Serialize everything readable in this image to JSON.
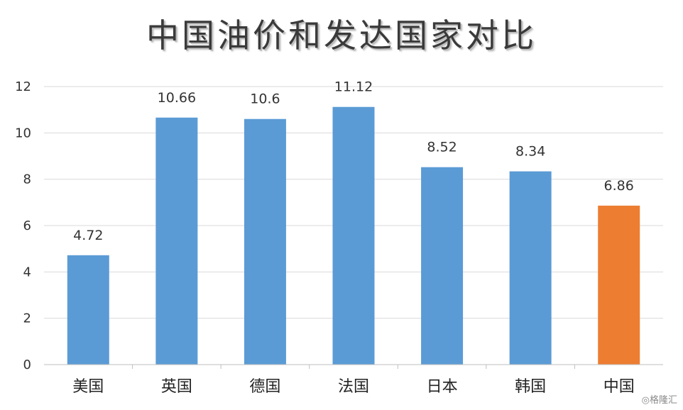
{
  "chart_data": {
    "type": "bar",
    "title": "中国油价和发达国家对比",
    "categories": [
      "美国",
      "英国",
      "德国",
      "法国",
      "日本",
      "韩国",
      "中国"
    ],
    "values": [
      4.72,
      10.66,
      10.6,
      11.12,
      8.52,
      8.34,
      6.86
    ],
    "data_labels": [
      "4.72",
      "10.66",
      "10.6",
      "11.12",
      "8.52",
      "8.34",
      "6.86"
    ],
    "bar_colors": [
      "#5B9BD5",
      "#5B9BD5",
      "#5B9BD5",
      "#5B9BD5",
      "#5B9BD5",
      "#5B9BD5",
      "#ED7D31"
    ],
    "ylim": [
      0,
      12
    ],
    "yticks": [
      0,
      2,
      4,
      6,
      8,
      10,
      12
    ],
    "grid": true,
    "legend": "none"
  },
  "watermark": "◎格隆汇"
}
